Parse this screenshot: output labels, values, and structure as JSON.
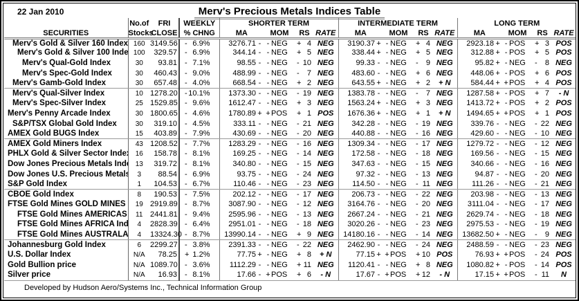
{
  "meta": {
    "date": "22 Jan 2010",
    "title": "Merv's Precious Metals Indices Table",
    "footer": "Developed by Hudson Aero/Systems Inc.,   Technical Information Group"
  },
  "headers": {
    "securities": "SECURITIES",
    "no_of": "No.of",
    "stocks": "Stocks",
    "fri": "FRI",
    "close": "CLOSE",
    "weekly": "WEEKLY",
    "pct_chng": "% CHNG",
    "shorter_term": "SHORTER  TERM",
    "intermediate_term": "INTERMEDIATE  TERM",
    "long_term": "LONG  TERM",
    "ma": "MA",
    "mom": "MOM",
    "rs": "RS",
    "rate": "RATE"
  },
  "rows": [
    {
      "name": "Merv's Gold & Silver 160 Index",
      "indent": 1,
      "stocks": "160",
      "close": "3149.56",
      "wk_sign": "-",
      "wk": "6.9%",
      "st": {
        "ma": "3276.71",
        "mas": "-",
        "moms": "-",
        "mom": "NEG",
        "rss": "+",
        "rs": "4",
        "rate": "NEG"
      },
      "it": {
        "ma": "3190.37",
        "mas": "+",
        "moms": "-",
        "mom": "NEG",
        "rss": "+",
        "rs": "4",
        "rate": "NEG"
      },
      "lt": {
        "ma": "2923.18",
        "mas": "+",
        "moms": "-",
        "mom": "POS",
        "rss": "+",
        "rs": "3",
        "rate": "POS"
      }
    },
    {
      "name": "Merv's Gold & Silver 100 Index",
      "indent": 2,
      "stocks": "100",
      "close": "329.57",
      "wk_sign": "-",
      "wk": "6.9%",
      "st": {
        "ma": "344.14",
        "mas": "-",
        "moms": "-",
        "mom": "NEG",
        "rss": "+",
        "rs": "5",
        "rate": "NEG"
      },
      "it": {
        "ma": "338.44",
        "mas": "+",
        "moms": "-",
        "mom": "NEG",
        "rss": "+",
        "rs": "5",
        "rate": "NEG"
      },
      "lt": {
        "ma": "312.88",
        "mas": "+",
        "moms": "-",
        "mom": "POS",
        "rss": "+",
        "rs": "5",
        "rate": "POS"
      }
    },
    {
      "name": "Merv's Qual-Gold Index",
      "indent": 3,
      "stocks": "30",
      "close": "93.81",
      "wk_sign": "-",
      "wk": "7.1%",
      "st": {
        "ma": "98.55",
        "mas": "-",
        "moms": "-",
        "mom": "NEG",
        "rss": "-",
        "rs": "10",
        "rate": "NEG"
      },
      "it": {
        "ma": "99.33",
        "mas": "-",
        "moms": "-",
        "mom": "NEG",
        "rss": "-",
        "rs": "9",
        "rate": "NEG"
      },
      "lt": {
        "ma": "95.82",
        "mas": "+",
        "moms": "-",
        "mom": "NEG",
        "rss": "-",
        "rs": "8",
        "rate": "NEG"
      }
    },
    {
      "name": "Merv's Spec-Gold Index",
      "indent": 3,
      "stocks": "30",
      "close": "460.43",
      "wk_sign": "-",
      "wk": "9.0%",
      "st": {
        "ma": "488.99",
        "mas": "-",
        "moms": "-",
        "mom": "NEG",
        "rss": "-",
        "rs": "7",
        "rate": "NEG"
      },
      "it": {
        "ma": "483.60",
        "mas": "-",
        "moms": "-",
        "mom": "NEG",
        "rss": "+",
        "rs": "6",
        "rate": "NEG"
      },
      "lt": {
        "ma": "448.06",
        "mas": "+",
        "moms": "-",
        "mom": "POS",
        "rss": "+",
        "rs": "6",
        "rate": "POS"
      }
    },
    {
      "name": "Merv's Gamb-Gold Index",
      "indent": 1,
      "stocks": "30",
      "close": "657.48",
      "wk_sign": "-",
      "wk": "4.0%",
      "sep": true,
      "st": {
        "ma": "668.54",
        "mas": "-",
        "moms": "-",
        "mom": "NEG",
        "rss": "+",
        "rs": "2",
        "rate": "NEG"
      },
      "it": {
        "ma": "643.55",
        "mas": "+",
        "moms": "-",
        "mom": "NEG",
        "rss": "+",
        "rs": "2",
        "rate": "+ N"
      },
      "lt": {
        "ma": "584.44",
        "mas": "+",
        "moms": "+",
        "mom": "POS",
        "rss": "+",
        "rs": "4",
        "rate": "POS"
      }
    },
    {
      "name": "Merv's Qual-Silver Index",
      "indent": 1,
      "stocks": "10",
      "close": "1278.20",
      "wk_sign": "-",
      "wk": "10.1%",
      "st": {
        "ma": "1373.30",
        "mas": "-",
        "moms": "-",
        "mom": "NEG",
        "rss": "-",
        "rs": "19",
        "rate": "NEG"
      },
      "it": {
        "ma": "1383.78",
        "mas": "-",
        "moms": "-",
        "mom": "NEG",
        "rss": "-",
        "rs": "7",
        "rate": "NEG"
      },
      "lt": {
        "ma": "1287.58",
        "mas": "+",
        "moms": "-",
        "mom": "POS",
        "rss": "+",
        "rs": "7",
        "rate": "- N"
      }
    },
    {
      "name": "Merv's Spec-Silver Index",
      "indent": 1,
      "stocks": "25",
      "close": "1529.85",
      "wk_sign": "-",
      "wk": "9.6%",
      "st": {
        "ma": "1612.47",
        "mas": "-",
        "moms": "-",
        "mom": "NEG",
        "rss": "+",
        "rs": "3",
        "rate": "NEG"
      },
      "it": {
        "ma": "1563.24",
        "mas": "+",
        "moms": "-",
        "mom": "NEG",
        "rss": "+",
        "rs": "3",
        "rate": "NEG"
      },
      "lt": {
        "ma": "1413.72",
        "mas": "+",
        "moms": "-",
        "mom": "POS",
        "rss": "+",
        "rs": "2",
        "rate": "POS"
      }
    },
    {
      "name": "Merv's Penny Arcade Index",
      "indent": 0,
      "stocks": "30",
      "close": "1800.65",
      "wk_sign": "-",
      "wk": "4.6%",
      "st": {
        "ma": "1780.89",
        "mas": "+",
        "moms": "+",
        "mom": "POS",
        "rss": "+",
        "rs": "1",
        "rate": "POS"
      },
      "it": {
        "ma": "1676.36",
        "mas": "+",
        "moms": "-",
        "mom": "NEG",
        "rss": "+",
        "rs": "1",
        "rate": "+ N"
      },
      "lt": {
        "ma": "1494.65",
        "mas": "+",
        "moms": "+",
        "mom": "POS",
        "rss": "+",
        "rs": "1",
        "rate": "POS"
      }
    },
    {
      "name": "S&P/TSX Global Gold Index",
      "indent": 1,
      "stocks": "30",
      "close": "319.10",
      "wk_sign": "-",
      "wk": "4.5%",
      "st": {
        "ma": "333.11",
        "mas": "-",
        "moms": "-",
        "mom": "NEG",
        "rss": "-",
        "rs": "21",
        "rate": "NEG"
      },
      "it": {
        "ma": "342.28",
        "mas": "-",
        "moms": "-",
        "mom": "NEG",
        "rss": "-",
        "rs": "19",
        "rate": "NEG"
      },
      "lt": {
        "ma": "339.76",
        "mas": "-",
        "moms": "-",
        "mom": "NEG",
        "rss": "-",
        "rs": "22",
        "rate": "NEG"
      }
    },
    {
      "name": "AMEX Gold BUGS Index",
      "indent": 0,
      "stocks": "15",
      "close": "403.89",
      "wk_sign": "-",
      "wk": "7.9%",
      "sep": true,
      "st": {
        "ma": "430.69",
        "mas": "-",
        "moms": "-",
        "mom": "NEG",
        "rss": "-",
        "rs": "20",
        "rate": "NEG"
      },
      "it": {
        "ma": "440.88",
        "mas": "-",
        "moms": "-",
        "mom": "NEG",
        "rss": "-",
        "rs": "16",
        "rate": "NEG"
      },
      "lt": {
        "ma": "429.60",
        "mas": "-",
        "moms": "-",
        "mom": "NEG",
        "rss": "-",
        "rs": "10",
        "rate": "NEG"
      }
    },
    {
      "name": "AMEX Gold Miners Index",
      "indent": 0,
      "stocks": "43",
      "close": "1208.52",
      "wk_sign": "-",
      "wk": "7.7%",
      "st": {
        "ma": "1283.29",
        "mas": "-",
        "moms": "-",
        "mom": "NEG",
        "rss": "-",
        "rs": "16",
        "rate": "NEG"
      },
      "it": {
        "ma": "1309.34",
        "mas": "-",
        "moms": "-",
        "mom": "NEG",
        "rss": "-",
        "rs": "17",
        "rate": "NEG"
      },
      "lt": {
        "ma": "1279.72",
        "mas": "-",
        "moms": "-",
        "mom": "NEG",
        "rss": "-",
        "rs": "12",
        "rate": "NEG"
      }
    },
    {
      "name": "PHLX Gold & Silver Sector Index",
      "indent": 0,
      "stocks": "16",
      "close": "158.78",
      "wk_sign": "-",
      "wk": "8.1%",
      "st": {
        "ma": "169.25",
        "mas": "-",
        "moms": "-",
        "mom": "NEG",
        "rss": "-",
        "rs": "14",
        "rate": "NEG"
      },
      "it": {
        "ma": "172.58",
        "mas": "-",
        "moms": "-",
        "mom": "NEG",
        "rss": "-",
        "rs": "18",
        "rate": "NEG"
      },
      "lt": {
        "ma": "169.56",
        "mas": "-",
        "moms": "-",
        "mom": "NEG",
        "rss": "-",
        "rs": "15",
        "rate": "NEG"
      }
    },
    {
      "name": "Dow Jones Precious Metals Inde",
      "indent": 0,
      "stocks": "13",
      "close": "319.72",
      "wk_sign": "-",
      "wk": "8.1%",
      "st": {
        "ma": "340.80",
        "mas": "-",
        "moms": "-",
        "mom": "NEG",
        "rss": "-",
        "rs": "15",
        "rate": "NEG"
      },
      "it": {
        "ma": "347.63",
        "mas": "-",
        "moms": "-",
        "mom": "NEG",
        "rss": "-",
        "rs": "15",
        "rate": "NEG"
      },
      "lt": {
        "ma": "340.66",
        "mas": "-",
        "moms": "-",
        "mom": "NEG",
        "rss": "-",
        "rs": "16",
        "rate": "NEG"
      }
    },
    {
      "name": "Dow Jones U.S. Precious Metals",
      "indent": 0,
      "stocks": "3",
      "close": "88.54",
      "wk_sign": "-",
      "wk": "6.9%",
      "st": {
        "ma": "93.75",
        "mas": "-",
        "moms": "-",
        "mom": "NEG",
        "rss": "-",
        "rs": "24",
        "rate": "NEG"
      },
      "it": {
        "ma": "97.32",
        "mas": "-",
        "moms": "-",
        "mom": "NEG",
        "rss": "-",
        "rs": "13",
        "rate": "NEG"
      },
      "lt": {
        "ma": "94.87",
        "mas": "-",
        "moms": "-",
        "mom": "NEG",
        "rss": "-",
        "rs": "20",
        "rate": "NEG"
      }
    },
    {
      "name": "S&P Gold Index",
      "indent": 0,
      "stocks": "1",
      "close": "104.53",
      "wk_sign": "-",
      "wk": "6.7%",
      "sep": true,
      "st": {
        "ma": "110.46",
        "mas": "-",
        "moms": "-",
        "mom": "NEG",
        "rss": "-",
        "rs": "23",
        "rate": "NEG"
      },
      "it": {
        "ma": "114.50",
        "mas": "-",
        "moms": "-",
        "mom": "NEG",
        "rss": "-",
        "rs": "11",
        "rate": "NEG"
      },
      "lt": {
        "ma": "111.26",
        "mas": "-",
        "moms": "-",
        "mom": "NEG",
        "rss": "-",
        "rs": "21",
        "rate": "NEG"
      }
    },
    {
      "name": "CBOE Gold Index",
      "indent": 0,
      "stocks": "8",
      "close": "190.53",
      "wk_sign": "-",
      "wk": "7.5%",
      "st": {
        "ma": "202.12",
        "mas": "-",
        "moms": "-",
        "mom": "NEG",
        "rss": "-",
        "rs": "17",
        "rate": "NEG"
      },
      "it": {
        "ma": "206.73",
        "mas": "-",
        "moms": "-",
        "mom": "NEG",
        "rss": "-",
        "rs": "22",
        "rate": "NEG"
      },
      "lt": {
        "ma": "203.98",
        "mas": "-",
        "moms": "-",
        "mom": "NEG",
        "rss": "-",
        "rs": "13",
        "rate": "NEG"
      }
    },
    {
      "name": "FTSE Gold Mines GOLD MINES I",
      "indent": 0,
      "stocks": "19",
      "close": "2919.89",
      "wk_sign": "-",
      "wk": "8.7%",
      "st": {
        "ma": "3087.90",
        "mas": "-",
        "moms": "-",
        "mom": "NEG",
        "rss": "-",
        "rs": "12",
        "rate": "NEG"
      },
      "it": {
        "ma": "3164.76",
        "mas": "-",
        "moms": "-",
        "mom": "NEG",
        "rss": "-",
        "rs": "20",
        "rate": "NEG"
      },
      "lt": {
        "ma": "3111.04",
        "mas": "-",
        "moms": "-",
        "mom": "NEG",
        "rss": "-",
        "rs": "17",
        "rate": "NEG"
      }
    },
    {
      "name": "FTSE Gold Mines AMERICAS In",
      "indent": 2,
      "stocks": "11",
      "close": "2441.81",
      "wk_sign": "-",
      "wk": "9.4%",
      "st": {
        "ma": "2595.96",
        "mas": "-",
        "moms": "-",
        "mom": "NEG",
        "rss": "-",
        "rs": "13",
        "rate": "NEG"
      },
      "it": {
        "ma": "2667.24",
        "mas": "-",
        "moms": "-",
        "mom": "NEG",
        "rss": "-",
        "rs": "21",
        "rate": "NEG"
      },
      "lt": {
        "ma": "2629.74",
        "mas": "-",
        "moms": "-",
        "mom": "NEG",
        "rss": "-",
        "rs": "18",
        "rate": "NEG"
      }
    },
    {
      "name": "FTSE Gold Mines AFRICA Index",
      "indent": 2,
      "stocks": "4",
      "close": "2828.39",
      "wk_sign": "-",
      "wk": "6.4%",
      "st": {
        "ma": "2951.01",
        "mas": "-",
        "moms": "-",
        "mom": "NEG",
        "rss": "-",
        "rs": "18",
        "rate": "NEG"
      },
      "it": {
        "ma": "3020.26",
        "mas": "-",
        "moms": "-",
        "mom": "NEG",
        "rss": "-",
        "rs": "23",
        "rate": "NEG"
      },
      "lt": {
        "ma": "2975.53",
        "mas": "-",
        "moms": "-",
        "mom": "NEG",
        "rss": "-",
        "rs": "19",
        "rate": "NEG"
      }
    },
    {
      "name": "FTSE Gold Mines AUSTRALASI",
      "indent": 2,
      "stocks": "4",
      "close": "13324.30",
      "wk_sign": "-",
      "wk": "8.7%",
      "sep": true,
      "st": {
        "ma": "13990.14",
        "mas": "-",
        "moms": "-",
        "mom": "NEG",
        "rss": "+",
        "rs": "9",
        "rate": "NEG"
      },
      "it": {
        "ma": "14180.16",
        "mas": "-",
        "moms": "-",
        "mom": "NEG",
        "rss": "-",
        "rs": "14",
        "rate": "NEG"
      },
      "lt": {
        "ma": "13682.50",
        "mas": "+",
        "moms": "-",
        "mom": "NEG",
        "rss": "-",
        "rs": "9",
        "rate": "NEG"
      }
    },
    {
      "name": "Johannesburg Gold Index",
      "indent": 0,
      "stocks": "6",
      "close": "2299.27",
      "wk_sign": "-",
      "wk": "3.8%",
      "st": {
        "ma": "2391.33",
        "mas": "-",
        "moms": "-",
        "mom": "NEG",
        "rss": "-",
        "rs": "22",
        "rate": "NEG"
      },
      "it": {
        "ma": "2462.90",
        "mas": "-",
        "moms": "-",
        "mom": "NEG",
        "rss": "-",
        "rs": "24",
        "rate": "NEG"
      },
      "lt": {
        "ma": "2488.59",
        "mas": "-",
        "moms": "-",
        "mom": "NEG",
        "rss": "-",
        "rs": "23",
        "rate": "NEG"
      }
    },
    {
      "name": "U.S. Dollar Index",
      "indent": 0,
      "stocks": "N/A",
      "close": "78.25",
      "wk_sign": "+",
      "wk": "1.2%",
      "st": {
        "ma": "77.75",
        "mas": "+",
        "moms": "-",
        "mom": "NEG",
        "rss": "+",
        "rs": "8",
        "rate": "+ N"
      },
      "it": {
        "ma": "77.15",
        "mas": "+",
        "moms": "+",
        "mom": "POS",
        "rss": "+",
        "rs": "10",
        "rate": "POS"
      },
      "lt": {
        "ma": "76.93",
        "mas": "+",
        "moms": "+",
        "mom": "POS",
        "rss": "-",
        "rs": "24",
        "rate": "POS"
      }
    },
    {
      "name": "Gold Bullion price",
      "indent": 0,
      "stocks": "N/A",
      "close": "1089.70",
      "wk_sign": "-",
      "wk": "3.6%",
      "st": {
        "ma": "1112.29",
        "mas": "-",
        "moms": "-",
        "mom": "NEG",
        "rss": "+",
        "rs": "11",
        "rate": "NEG"
      },
      "it": {
        "ma": "1120.41",
        "mas": "-",
        "moms": "-",
        "mom": "NEG",
        "rss": "+",
        "rs": "8",
        "rate": "NEG"
      },
      "lt": {
        "ma": "1080.82",
        "mas": "+",
        "moms": "-",
        "mom": "POS",
        "rss": "-",
        "rs": "14",
        "rate": "POS"
      }
    },
    {
      "name": "Silver price",
      "indent": 0,
      "stocks": "N/A",
      "close": "16.93",
      "wk_sign": "-",
      "wk": "8.1%",
      "st": {
        "ma": "17.66",
        "mas": "-",
        "moms": "+",
        "mom": "POS",
        "rss": "+",
        "rs": "6",
        "rate": "- N"
      },
      "it": {
        "ma": "17.67",
        "mas": "-",
        "moms": "+",
        "mom": "POS",
        "rss": "+",
        "rs": "12",
        "rate": "- N"
      },
      "lt": {
        "ma": "17.15",
        "mas": "+",
        "moms": "+",
        "mom": "POS",
        "rss": "-",
        "rs": "11",
        "rate": "N"
      }
    }
  ]
}
